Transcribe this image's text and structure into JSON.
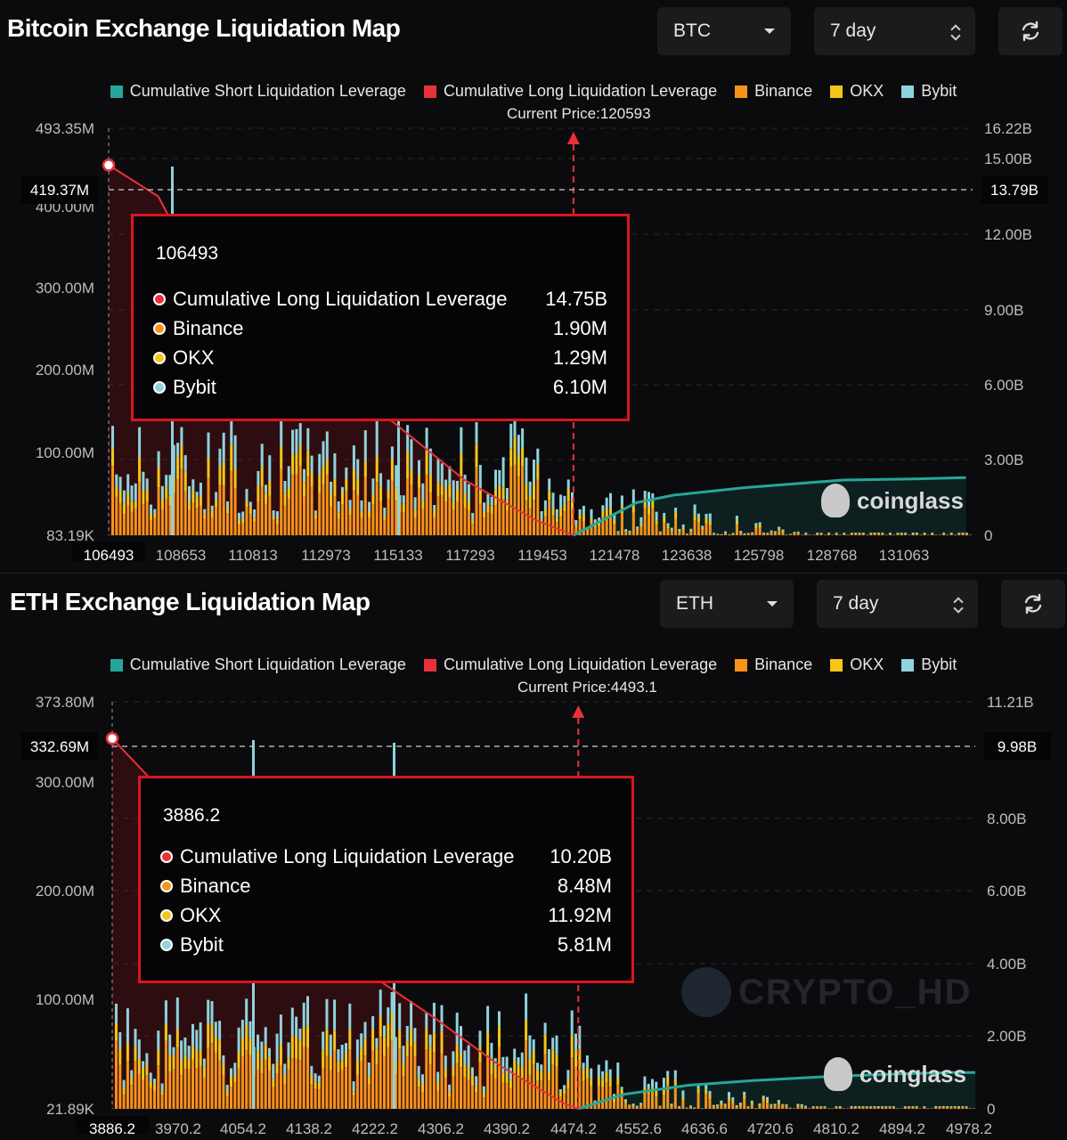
{
  "colors": {
    "short": "#26a69a",
    "long": "#e8313a",
    "binance": "#f7931a",
    "okx": "#f5c518",
    "bybit": "#8fd3dc",
    "tooltip_border": "#d8161e"
  },
  "btc": {
    "title": "Bitcoin Exchange Liquidation Map",
    "symbol_select": "BTC",
    "period_select": "7 day",
    "refresh_icon": "refresh-icon",
    "legend": [
      "Cumulative Short Liquidation Leverage",
      "Cumulative Long Liquidation Leverage",
      "Binance",
      "OKX",
      "Bybit"
    ],
    "current_price_label": "Current Price:120593",
    "left_axis_ticks": [
      "493.35M",
      "400.00M",
      "300.00M",
      "200.00M",
      "100.00M",
      "83.19K"
    ],
    "right_axis_ticks": [
      "16.22B",
      "15.00B",
      "12.00B",
      "9.00B",
      "6.00B",
      "3.00B",
      "0"
    ],
    "crosshair_left": "419.37M",
    "crosshair_right": "13.79B",
    "x_labels": [
      "106493",
      "108653",
      "110813",
      "112973",
      "115133",
      "117293",
      "119453",
      "121478",
      "123638",
      "125798",
      "128768",
      "131063"
    ],
    "tooltip": {
      "price": "106493",
      "rows": [
        {
          "label": "Cumulative Long Liquidation Leverage",
          "value": "14.75B"
        },
        {
          "label": "Binance",
          "value": "1.90M"
        },
        {
          "label": "OKX",
          "value": "1.29M"
        },
        {
          "label": "Bybit",
          "value": "6.10M"
        }
      ]
    },
    "watermark": "coinglass"
  },
  "eth": {
    "title": "ETH Exchange Liquidation Map",
    "symbol_select": "ETH",
    "period_select": "7 day",
    "refresh_icon": "refresh-icon",
    "legend": [
      "Cumulative Short Liquidation Leverage",
      "Cumulative Long Liquidation Leverage",
      "Binance",
      "OKX",
      "Bybit"
    ],
    "current_price_label": "Current Price:4493.1",
    "left_axis_ticks": [
      "373.80M",
      "300.00M",
      "200.00M",
      "100.00M",
      "21.89K"
    ],
    "right_axis_ticks": [
      "11.21B",
      "8.00B",
      "6.00B",
      "4.00B",
      "2.00B",
      "0"
    ],
    "crosshair_left": "332.69M",
    "crosshair_right": "9.98B",
    "x_labels": [
      "3886.2",
      "3970.2",
      "4054.2",
      "4138.2",
      "4222.2",
      "4306.2",
      "4390.2",
      "4474.2",
      "4552.6",
      "4636.6",
      "4720.6",
      "4810.2",
      "4894.2",
      "4978.2"
    ],
    "tooltip": {
      "price": "3886.2",
      "rows": [
        {
          "label": "Cumulative Long Liquidation Leverage",
          "value": "10.20B"
        },
        {
          "label": "Binance",
          "value": "8.48M"
        },
        {
          "label": "OKX",
          "value": "11.92M"
        },
        {
          "label": "Bybit",
          "value": "5.81M"
        }
      ]
    },
    "watermark": "coinglass",
    "watermark2": "CRYPTO_HD"
  },
  "chart_data": [
    {
      "type": "bar",
      "title": "Bitcoin Exchange Liquidation Map",
      "xlabel": "",
      "ylabel": "",
      "x_ticks": [
        106493,
        108653,
        110813,
        112973,
        115133,
        117293,
        119453,
        121478,
        123638,
        125798,
        128768,
        131063
      ],
      "ylim_left": [
        0,
        493350000
      ],
      "ylim_right": [
        0,
        16220000000
      ],
      "current_price": 120593,
      "series": [
        {
          "name": "Cumulative Long Liquidation Leverage",
          "type": "area",
          "axis": "right",
          "points": [
            [
              106493,
              14750000000
            ],
            [
              108000,
              13500000000
            ],
            [
              109000,
              11000000000
            ],
            [
              111000,
              8000000000
            ],
            [
              113000,
              6500000000
            ],
            [
              115133,
              4500000000
            ],
            [
              117293,
              2200000000
            ],
            [
              119453,
              600000000
            ],
            [
              120593,
              0
            ]
          ]
        },
        {
          "name": "Cumulative Short Liquidation Leverage",
          "type": "area",
          "axis": "right",
          "points": [
            [
              120593,
              0
            ],
            [
              121478,
              600000000
            ],
            [
              122500,
              1300000000
            ],
            [
              123638,
              1600000000
            ],
            [
              125798,
              1900000000
            ],
            [
              128768,
              2200000000
            ],
            [
              131063,
              2250000000
            ],
            [
              132500,
              2300000000
            ]
          ]
        },
        {
          "name": "Binance",
          "type": "bar",
          "axis": "left"
        },
        {
          "name": "OKX",
          "type": "bar",
          "axis": "left"
        },
        {
          "name": "Bybit",
          "type": "bar",
          "axis": "left"
        }
      ],
      "tooltip": {
        "x": 106493,
        "Cumulative Long Liquidation Leverage": 14750000000,
        "Binance": 1900000,
        "OKX": 1290000,
        "Bybit": 6100000
      },
      "crosshair": {
        "left": 419370000,
        "right": 13790000000
      }
    },
    {
      "type": "bar",
      "title": "ETH Exchange Liquidation Map",
      "xlabel": "",
      "ylabel": "",
      "x_ticks": [
        3886.2,
        3970.2,
        4054.2,
        4138.2,
        4222.2,
        4306.2,
        4390.2,
        4474.2,
        4552.6,
        4636.6,
        4720.6,
        4810.2,
        4894.2,
        4978.2
      ],
      "ylim_left": [
        0,
        373800000
      ],
      "ylim_right": [
        0,
        11210000000
      ],
      "current_price": 4493.1,
      "series": [
        {
          "name": "Cumulative Long Liquidation Leverage",
          "type": "area",
          "axis": "right",
          "points": [
            [
              3886.2,
              10200000000
            ],
            [
              3940,
              9000000000
            ],
            [
              3990,
              7200000000
            ],
            [
              4054.2,
              5800000000
            ],
            [
              4138.2,
              4600000000
            ],
            [
              4222.2,
              3700000000
            ],
            [
              4306.2,
              2500000000
            ],
            [
              4390.2,
              1200000000
            ],
            [
              4474.2,
              150000000
            ],
            [
              4493.1,
              0
            ]
          ]
        },
        {
          "name": "Cumulative Short Liquidation Leverage",
          "type": "area",
          "axis": "right",
          "points": [
            [
              4493.1,
              0
            ],
            [
              4552.6,
              400000000
            ],
            [
              4636.6,
              650000000
            ],
            [
              4720.6,
              780000000
            ],
            [
              4810.2,
              880000000
            ],
            [
              4894.2,
              950000000
            ],
            [
              4978.2,
              1000000000
            ],
            [
              5010,
              1000000000
            ]
          ]
        },
        {
          "name": "Binance",
          "type": "bar",
          "axis": "left"
        },
        {
          "name": "OKX",
          "type": "bar",
          "axis": "left"
        },
        {
          "name": "Bybit",
          "type": "bar",
          "axis": "left"
        }
      ],
      "tooltip": {
        "x": 3886.2,
        "Cumulative Long Liquidation Leverage": 10200000000,
        "Binance": 8480000,
        "OKX": 11920000,
        "Bybit": 5810000
      },
      "crosshair": {
        "left": 332690000,
        "right": 9980000000
      }
    }
  ]
}
